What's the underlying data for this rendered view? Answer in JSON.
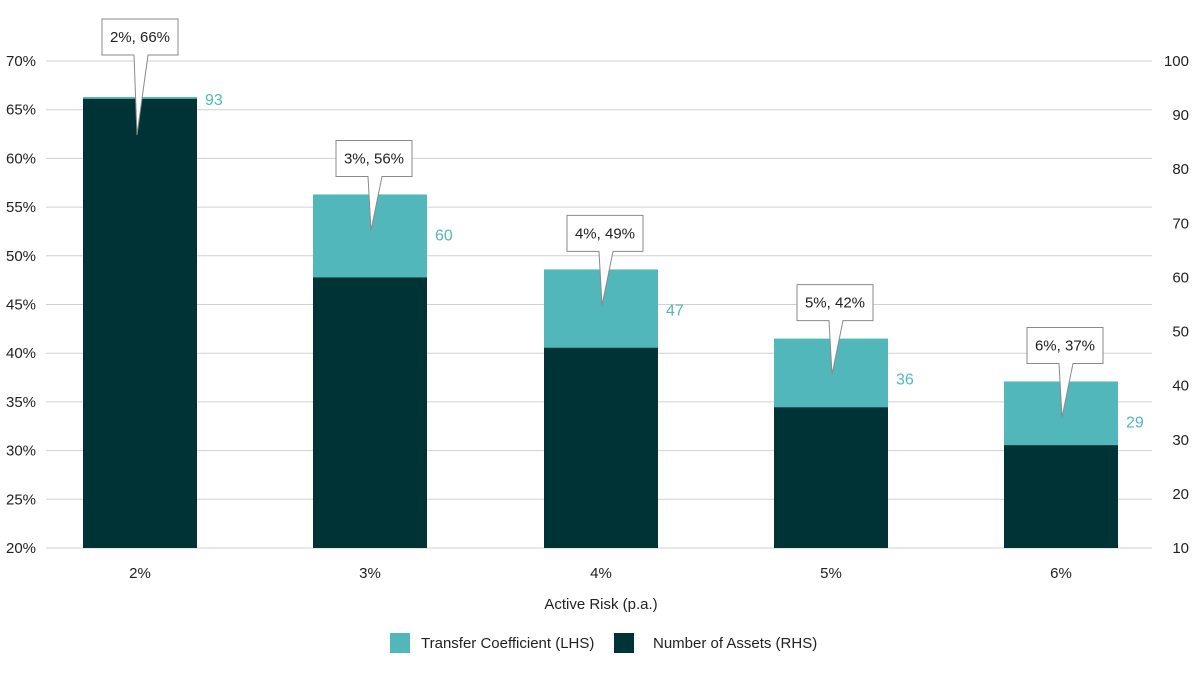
{
  "chart_data": {
    "type": "bar",
    "xlabel": "Active Risk (p.a.)",
    "categories": [
      "2%",
      "3%",
      "4%",
      "5%",
      "6%"
    ],
    "left_axis": {
      "ylim": [
        20,
        70
      ],
      "ticks": [
        20,
        25,
        30,
        35,
        40,
        45,
        50,
        55,
        60,
        65,
        70
      ],
      "tick_labels": [
        "20%",
        "25%",
        "30%",
        "35%",
        "40%",
        "45%",
        "50%",
        "55%",
        "60%",
        "65%",
        "70%"
      ]
    },
    "right_axis": {
      "ylim": [
        10,
        100
      ],
      "ticks": [
        10,
        20,
        30,
        40,
        50,
        60,
        70,
        80,
        90,
        100
      ],
      "tick_labels": [
        "10",
        "20",
        "30",
        "40",
        "50",
        "60",
        "70",
        "80",
        "90",
        "100"
      ]
    },
    "series": [
      {
        "name": "Transfer Coefficient (LHS)",
        "axis": "left",
        "color": "#52b7bb",
        "values": [
          66.3,
          56.3,
          48.6,
          41.5,
          37.1
        ]
      },
      {
        "name": "Number of Assets (RHS)",
        "axis": "right",
        "color": "#003336",
        "values": [
          93,
          60,
          47,
          36,
          29
        ]
      }
    ],
    "asset_labels": [
      "93",
      "60",
      "47",
      "36",
      "29"
    ],
    "callouts": [
      "2%, 66%",
      "3%, 56%",
      "4%, 49%",
      "5%, 42%",
      "6%, 37%"
    ],
    "grid": true,
    "legend_position": "bottom-center"
  }
}
